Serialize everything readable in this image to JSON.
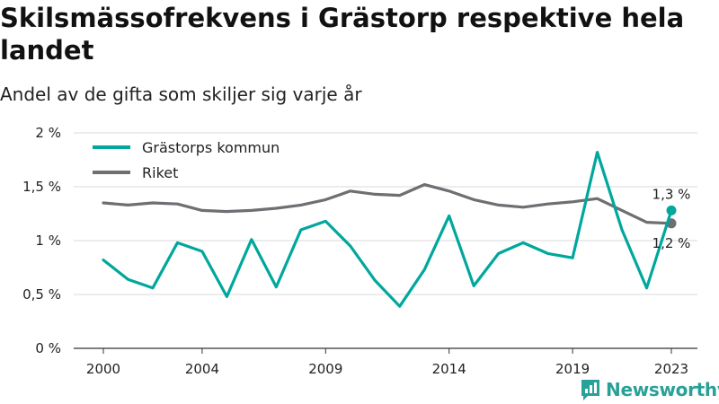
{
  "header": {
    "title": "Skilsmässofrekvens i Grästorp respektive hela landet",
    "subtitle": "Andel av de gifta som skiljer sig varje år"
  },
  "brand": {
    "name": "Newsworthy",
    "icon": "newsworthy-logo-icon",
    "color": "#2aa198"
  },
  "chart_data": {
    "type": "line",
    "x": [
      2000,
      2001,
      2002,
      2003,
      2004,
      2005,
      2006,
      2007,
      2008,
      2009,
      2010,
      2011,
      2012,
      2013,
      2014,
      2015,
      2016,
      2017,
      2018,
      2019,
      2020,
      2021,
      2022,
      2023
    ],
    "x_ticks": [
      "2000",
      "2004",
      "2009",
      "2014",
      "2019",
      "2023"
    ],
    "y_ticks": [
      "0 %",
      "0,5 %",
      "1 %",
      "1,5 %",
      "2 %"
    ],
    "ylim": [
      0,
      2
    ],
    "grid": true,
    "legend": "top-left",
    "series": [
      {
        "name": "Grästorps kommun",
        "color": "#00a79d",
        "values": [
          0.82,
          0.64,
          0.56,
          0.98,
          0.9,
          0.48,
          1.01,
          0.57,
          1.1,
          1.18,
          0.95,
          0.63,
          0.39,
          0.73,
          1.23,
          0.58,
          0.88,
          0.98,
          0.88,
          0.84,
          1.82,
          1.1,
          0.56,
          1.28
        ],
        "end_label": "1,3 %"
      },
      {
        "name": "Riket",
        "color": "#6e6e73",
        "values": [
          1.35,
          1.33,
          1.35,
          1.34,
          1.28,
          1.27,
          1.28,
          1.3,
          1.33,
          1.38,
          1.46,
          1.43,
          1.42,
          1.52,
          1.46,
          1.38,
          1.33,
          1.31,
          1.34,
          1.36,
          1.39,
          1.28,
          1.17,
          1.16
        ],
        "end_label": "1,2 %"
      }
    ]
  }
}
